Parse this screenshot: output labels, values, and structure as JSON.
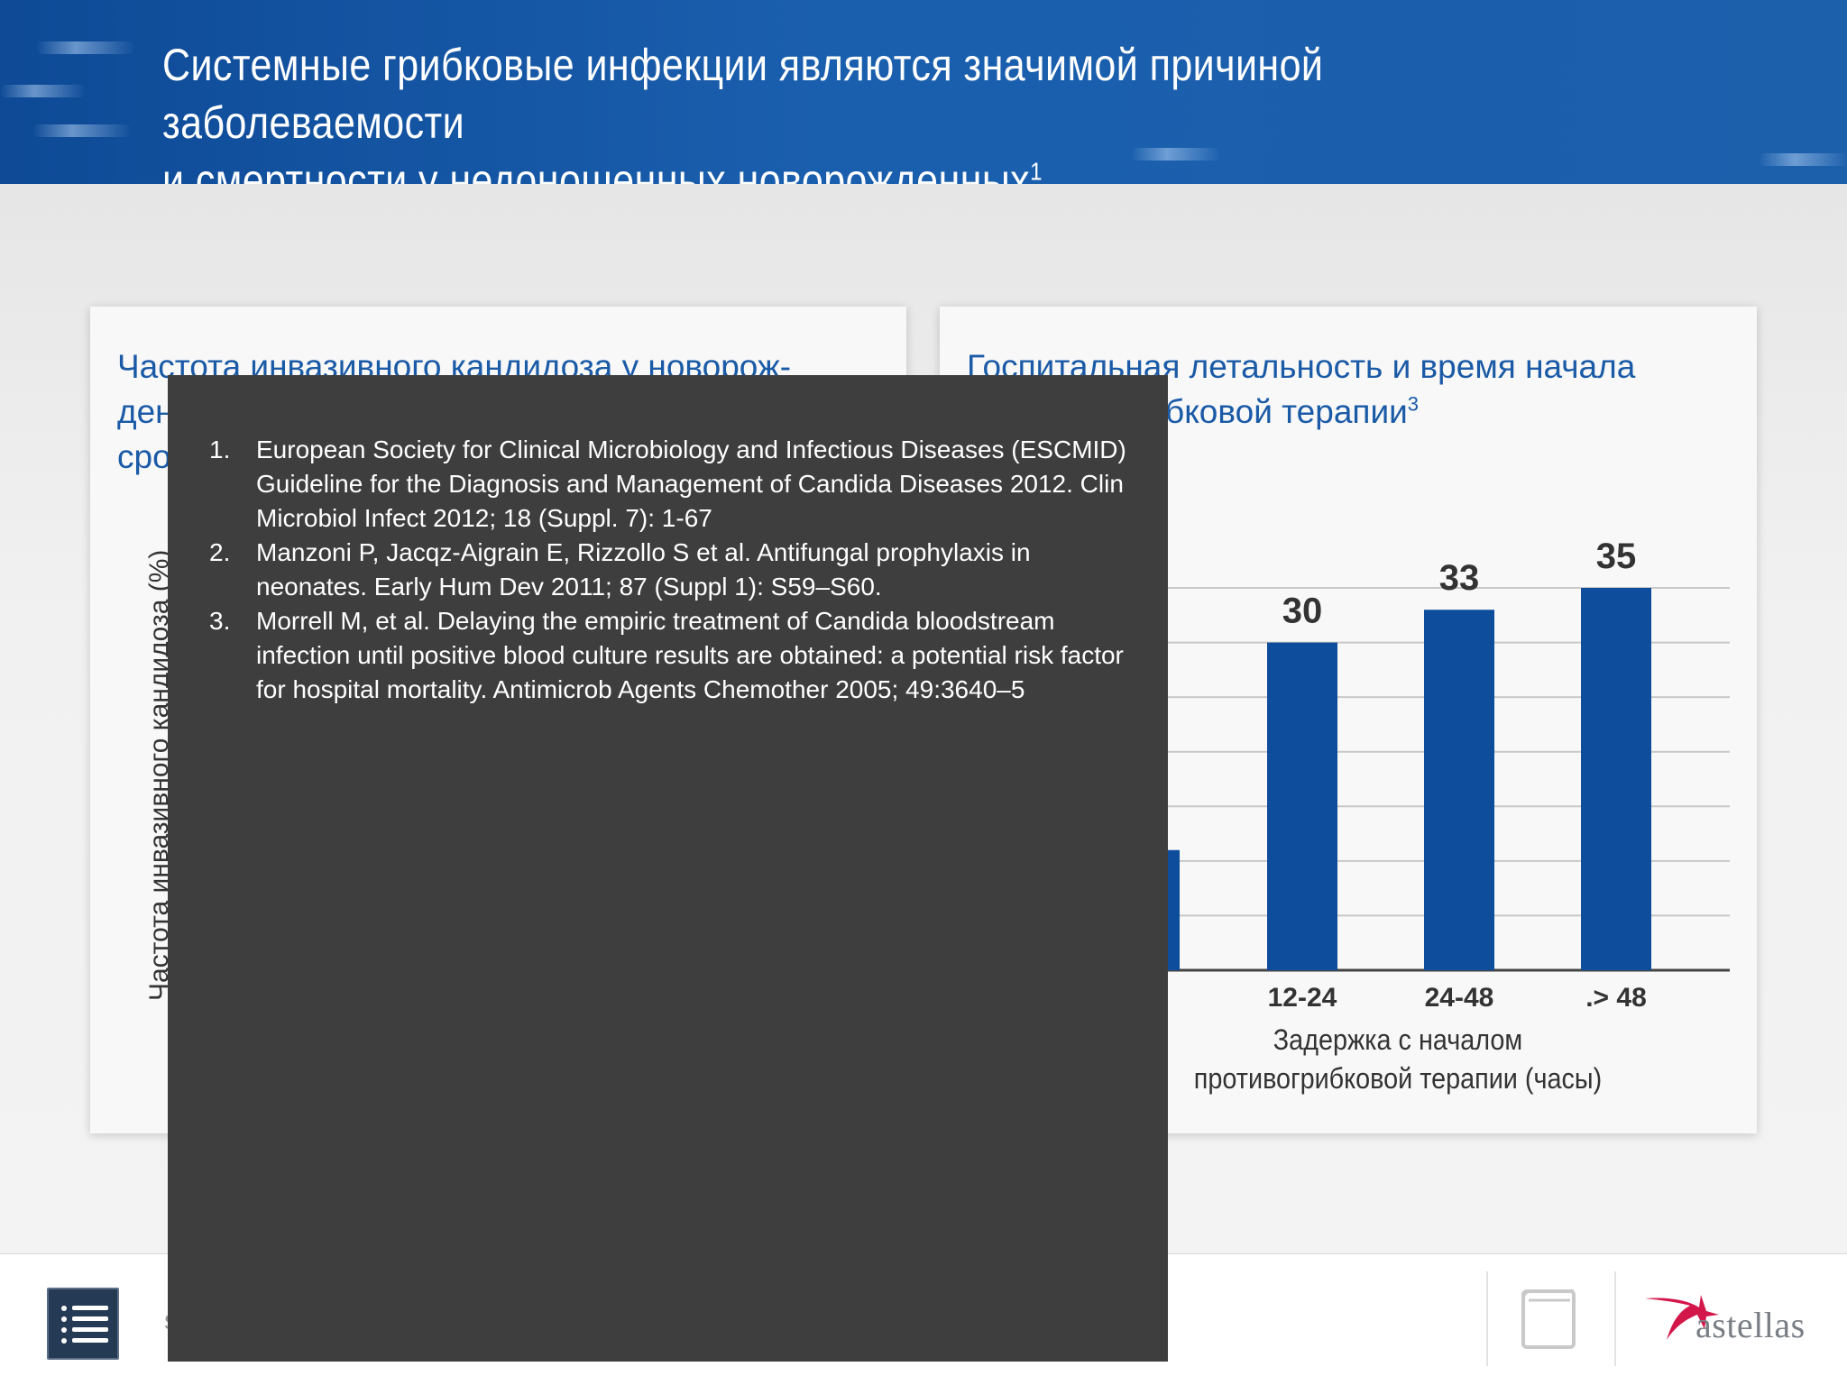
{
  "header": {
    "title_line1": "Системные грибковые инфекции являются значимой причиной заболеваемости",
    "title_line2": "и смертности у недоношенных новорожденных",
    "title_ref": "1"
  },
  "left_card": {
    "title_line1": "Частота инвазивного кандидоза у новорож-",
    "title_line2": "ден",
    "title_line3": "сро",
    "y_axis_label": "Частота инвазивного кандидоза (%)"
  },
  "right_card": {
    "title_line1": "Госпитальная летальность и время начала",
    "title_line2": "бковой терапии",
    "title_ref": "3",
    "x_axis_title_line1": "Задержка с началом",
    "x_axis_title_line2": "противогрибковой терапии (часы)"
  },
  "chart_data": {
    "type": "bar",
    "categories": [
      "12-24",
      "24-48",
      ".> 48"
    ],
    "values": [
      30,
      33,
      35
    ],
    "partially_hidden_bar_value": 11,
    "ylim": [
      0,
      35
    ],
    "grid": true,
    "bar_color": "#0d4d9b"
  },
  "references": [
    {
      "num": "1.",
      "text": "European Society for Clinical Microbiology and Infectious Diseases (ESCMID) Guideline for the Diagnosis and Management of Candida Diseases 2012. Clin Microbiol Infect 2012; 18 (Suppl. 7): 1-67"
    },
    {
      "num": "2.",
      "text": "Manzoni P, Jacqz-Aigrain E, Rizzollo S et al. Antifungal prophylaxis in neonates. Early Hum Dev 2011; 87 (Suppl 1): S59–S60."
    },
    {
      "num": "3.",
      "text": "Morrell M, et al. Delaying the empiric treatment of Candida bloodstream infection until positive blood culture results are obtained: a potential risk factor for hospital mortality. Antimicrob Agents Chemother 2005; 49:3640–5"
    }
  ],
  "bottom_bar": {
    "menu_icon": "list-menu-icon",
    "book_icon": "book-icon",
    "logo_text": "astellas",
    "hidden_char": "s"
  },
  "colors": {
    "header_blue": "#1a5fae",
    "title_blue": "#1a5aa6",
    "overlay_gray": "#3e3e3e",
    "bar_blue": "#0d4d9b"
  }
}
